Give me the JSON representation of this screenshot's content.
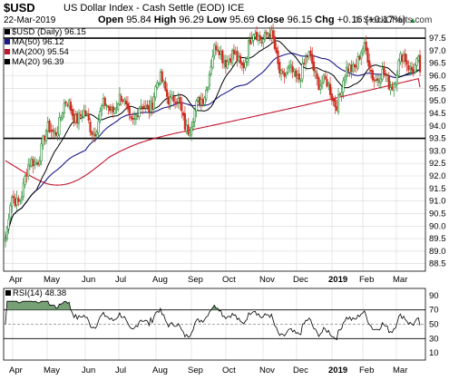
{
  "header": {
    "symbol": "$USD",
    "description": "US Dollar Index - Cash Settle (EOD)",
    "exchange": "ICE",
    "date": "22-Mar-2019",
    "open_label": "Open",
    "open": "95.84",
    "high_label": "High",
    "high": "96.29",
    "low_label": "Low",
    "low": "95.69",
    "close_label": "Close",
    "close": "96.15",
    "chg_label": "Chg",
    "chg": "+0.16 (+0.17%)",
    "chg_arrow": "▲",
    "logo": "© StockCharts.com"
  },
  "legend": [
    {
      "label": "$USD (Daily) 96.15",
      "color": "#000000"
    },
    {
      "label": "MA(50) 96.12",
      "color": "#1a1a8c"
    },
    {
      "label": "MA(200) 95.54",
      "color": "#c0162e"
    },
    {
      "label": "MA(20) 96.39",
      "color": "#000000"
    }
  ],
  "rsi_label": "RSI(14) 48.38",
  "chart_data": [
    {
      "type": "candlestick",
      "title": "$USD (Daily)",
      "x_labels": [
        "Apr",
        "May",
        "Jun",
        "Jul",
        "Aug",
        "Sep",
        "Oct",
        "Nov",
        "Dec",
        "2019",
        "Feb",
        "Mar"
      ],
      "y_ticks": [
        88.5,
        89.0,
        89.5,
        90.0,
        90.5,
        91.0,
        91.5,
        92.0,
        92.5,
        93.0,
        93.5,
        94.0,
        94.5,
        95.0,
        95.5,
        96.0,
        96.5,
        97.0,
        97.5
      ],
      "ylim": [
        88.2,
        97.9
      ],
      "horizontal_lines": [
        93.5,
        97.5
      ],
      "monthly_close_path": [
        [
          "Mar 2018",
          89.5
        ],
        [
          "Apr",
          90.6
        ],
        [
          "May",
          93.9
        ],
        [
          "Jun",
          94.5
        ],
        [
          "Jul",
          94.5
        ],
        [
          "Aug",
          95.2
        ],
        [
          "Sep",
          94.6
        ],
        [
          "Oct",
          96.9
        ],
        [
          "Nov",
          97.3
        ],
        [
          "Dec",
          96.2
        ],
        [
          "Jan 2019",
          95.6
        ],
        [
          "Feb",
          96.4
        ],
        [
          "Mar",
          96.15
        ]
      ],
      "series": [
        {
          "name": "MA(50)",
          "last": 96.12,
          "color": "#1a1a8c"
        },
        {
          "name": "MA(200)",
          "last": 95.54,
          "color": "#c0162e"
        },
        {
          "name": "MA(20)",
          "last": 96.39,
          "color": "#000000"
        }
      ]
    },
    {
      "type": "line",
      "title": "RSI(14)",
      "last": 48.38,
      "y_ticks": [
        10,
        30,
        50,
        70,
        90
      ],
      "ylim": [
        0,
        100
      ],
      "horizontal_lines": [
        30,
        70
      ],
      "x_labels": [
        "Apr",
        "May",
        "Jun",
        "Jul",
        "Aug",
        "Sep",
        "Oct",
        "Nov",
        "Dec",
        "2019",
        "Feb",
        "Mar"
      ]
    }
  ]
}
